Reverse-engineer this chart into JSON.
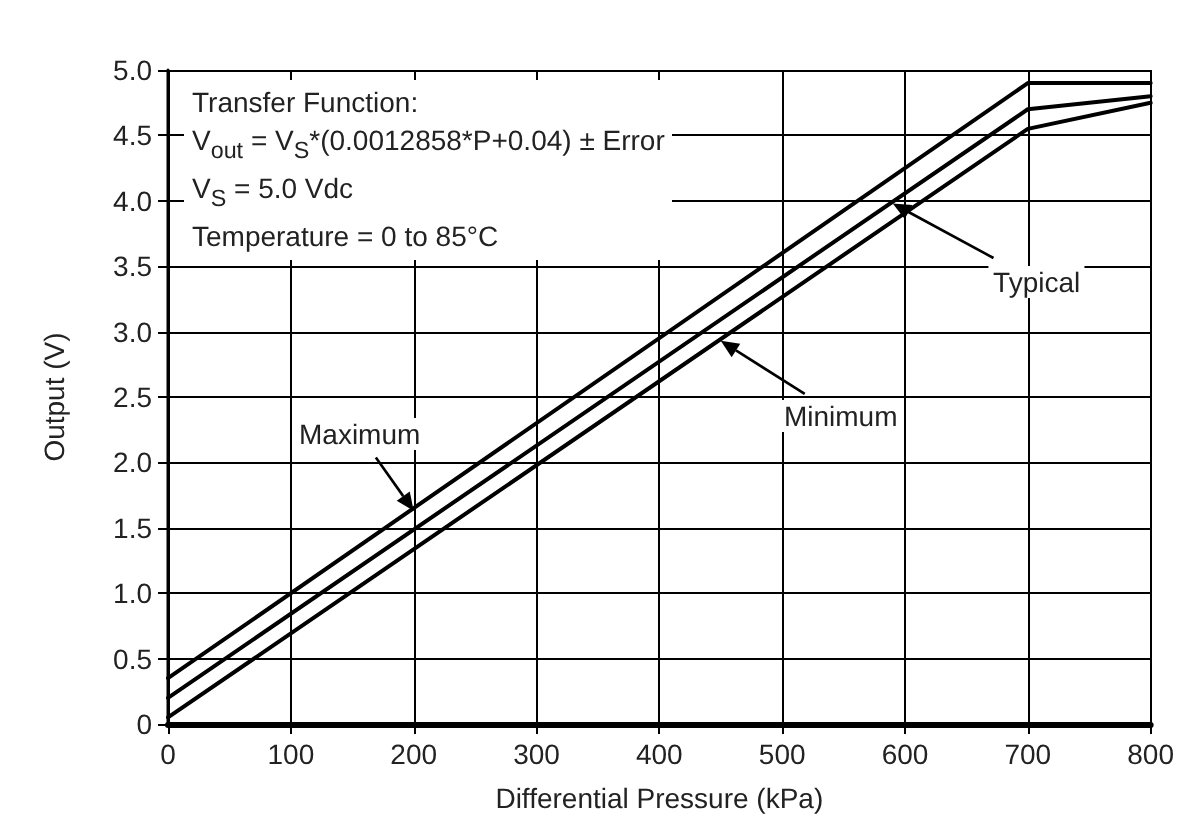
{
  "chart_data": {
    "type": "line",
    "xlabel": "Differential Pressure (kPa)",
    "ylabel": "Output (V)",
    "x": [
      0,
      700,
      800
    ],
    "series": [
      {
        "color": "#000000",
        "values": [
          0.35,
          4.9,
          4.9
        ]
      },
      {
        "color": "#000000",
        "values": [
          0.2,
          4.7,
          4.8
        ]
      },
      {
        "color": "#000000",
        "values": [
          0.05,
          4.55,
          4.75
        ]
      }
    ],
    "xlim": [
      0,
      800
    ],
    "xticks": [
      0,
      100,
      200,
      300,
      400,
      500,
      600,
      700,
      800
    ],
    "ylim": [
      0,
      5
    ],
    "yticks": [
      0,
      0.5,
      {
        "value": 1,
        "label": "1.0"
      },
      1.5,
      {
        "value": 2,
        "label": "2.0"
      },
      2.5,
      {
        "value": 3,
        "label": "3.0"
      },
      3.5,
      {
        "value": 4,
        "label": "4.0"
      },
      4.5,
      {
        "value": 5,
        "label": "5.0"
      }
    ],
    "grid": true,
    "marker": "none",
    "line_style": "solid",
    "annotations": [
      "Transfer Function:",
      "V$_{out}$ = V$_{S}$*(0.0012858*P+0.04) ± Error",
      "V$_{S}$ = 5.0 Vdc",
      "Temperature = 0 to 85°C",
      {
        "text": "Maximum",
        "x": 200,
        "y": 1.63
      },
      {
        "text": "Typical",
        "x": 590,
        "y": 3.98
      },
      {
        "text": "Minimum",
        "x": 450,
        "y": 2.93
      }
    ]
  }
}
